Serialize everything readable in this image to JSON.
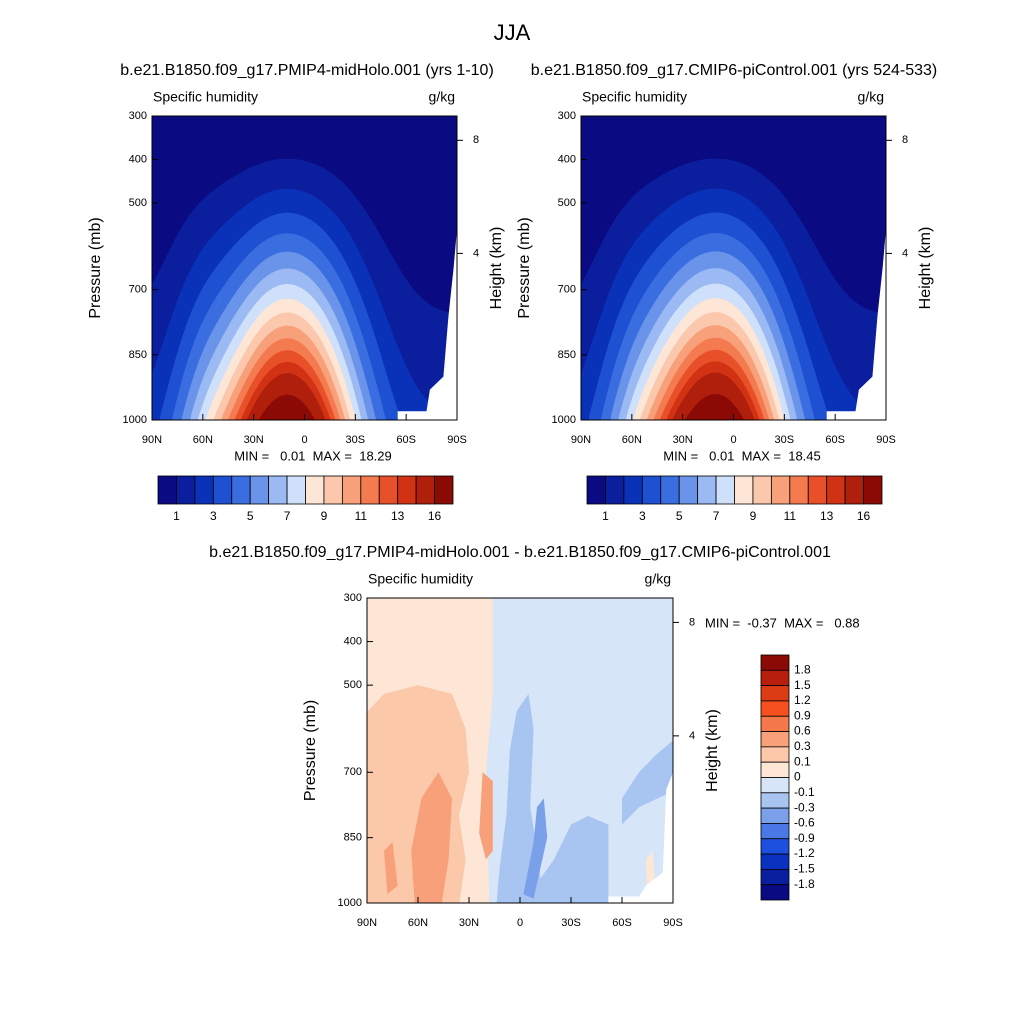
{
  "title": "JJA",
  "panels": [
    {
      "title": "b.e21.B1850.f09_g17.PMIP4-midHolo.001 (yrs 1-10)",
      "left_label": "Specific humidity",
      "right_label": "g/kg",
      "y_axis_label": "Pressure (mb)",
      "y2_axis_label": "Height (km)",
      "yticks": [
        300,
        400,
        500,
        700,
        850,
        1000
      ],
      "y2ticks": [
        8,
        4
      ],
      "xticks": [
        {
          "value": 90,
          "label": "90N"
        },
        {
          "value": 60,
          "label": "60N"
        },
        {
          "value": 30,
          "label": "30N"
        },
        {
          "value": 0,
          "label": "0"
        },
        {
          "value": -30,
          "label": "30S"
        },
        {
          "value": -60,
          "label": "60S"
        },
        {
          "value": -90,
          "label": "90S"
        }
      ],
      "stats": "MIN =   0.01  MAX =  18.29",
      "colorbar_labels": [
        "1",
        "3",
        "5",
        "7",
        "9",
        "11",
        "13",
        "16"
      ],
      "colors": [
        "#0a0a82",
        "#0a1e9e",
        "#0a32b9",
        "#1e50d2",
        "#3a6ee0",
        "#6a94ea",
        "#9bb9f2",
        "#cfe0fa",
        "#fde6d6",
        "#fbc8ae",
        "#f8a07a",
        "#f47a50",
        "#e8502a",
        "#d23214",
        "#b01e0c",
        "#8b0a05"
      ]
    },
    {
      "title": "b.e21.B1850.f09_g17.CMIP6-piControl.001 (yrs 524-533)",
      "left_label": "Specific humidity",
      "right_label": "g/kg",
      "y_axis_label": "Pressure (mb)",
      "y2_axis_label": "Height (km)",
      "yticks": [
        300,
        400,
        500,
        700,
        850,
        1000
      ],
      "y2ticks": [
        8,
        4
      ],
      "xticks": [
        {
          "value": 90,
          "label": "90N"
        },
        {
          "value": 60,
          "label": "60N"
        },
        {
          "value": 30,
          "label": "30N"
        },
        {
          "value": 0,
          "label": "0"
        },
        {
          "value": -30,
          "label": "30S"
        },
        {
          "value": -60,
          "label": "60S"
        },
        {
          "value": -90,
          "label": "90S"
        }
      ],
      "stats": "MIN =   0.01  MAX =  18.45",
      "colorbar_labels": [
        "1",
        "3",
        "5",
        "7",
        "9",
        "11",
        "13",
        "16"
      ],
      "colors": [
        "#0a0a82",
        "#0a1e9e",
        "#0a32b9",
        "#1e50d2",
        "#3a6ee0",
        "#6a94ea",
        "#9bb9f2",
        "#cfe0fa",
        "#fde6d6",
        "#fbc8ae",
        "#f8a07a",
        "#f47a50",
        "#e8502a",
        "#d23214",
        "#b01e0c",
        "#8b0a05"
      ]
    },
    {
      "title": "b.e21.B1850.f09_g17.PMIP4-midHolo.001 - b.e21.B1850.f09_g17.CMIP6-piControl.001",
      "left_label": "Specific humidity",
      "right_label": "g/kg",
      "y_axis_label": "Pressure (mb)",
      "y2_axis_label": "Height (km)",
      "yticks": [
        300,
        400,
        500,
        700,
        850,
        1000
      ],
      "y2ticks": [
        8,
        4
      ],
      "xticks": [
        {
          "value": 90,
          "label": "90N"
        },
        {
          "value": 60,
          "label": "60N"
        },
        {
          "value": 30,
          "label": "30N"
        },
        {
          "value": 0,
          "label": "0"
        },
        {
          "value": -30,
          "label": "30S"
        },
        {
          "value": -60,
          "label": "60S"
        },
        {
          "value": -90,
          "label": "90S"
        }
      ],
      "stats": "MIN =  -0.37  MAX =   0.88",
      "colorbar_labels": [
        "1.8",
        "1.5",
        "1.2",
        "0.9",
        "0.6",
        "0.3",
        "0.1",
        "0",
        "-0.1",
        "-0.3",
        "-0.6",
        "-0.9",
        "-1.2",
        "-1.5",
        "-1.8"
      ],
      "colors": [
        "#8b0a05",
        "#b71e0c",
        "#dc3c14",
        "#f5501e",
        "#f5784a",
        "#f8a07a",
        "#fcc8aa",
        "#fde6d6",
        "#d6e6f8",
        "#a8c4f0",
        "#7aa0ea",
        "#4a78e6",
        "#1e50e0",
        "#0a32c0",
        "#0a1ea0",
        "#0a0a82"
      ]
    }
  ]
}
